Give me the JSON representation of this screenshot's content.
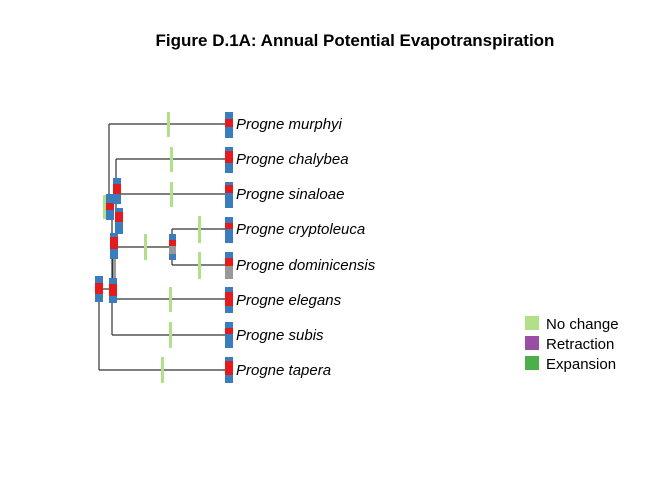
{
  "figure": {
    "title": "Figure D.1A: Annual Potential Evapotranspiration"
  },
  "tree": {
    "tips": [
      "Progne murphyi",
      "Progne chalybea",
      "Progne sinaloae",
      "Progne cryptoleuca",
      "Progne dominicensis",
      "Progne elegans",
      "Progne subis",
      "Progne tapera"
    ]
  },
  "legend": {
    "items": [
      {
        "label": "No change",
        "color": "#b2df8a"
      },
      {
        "label": "Retraction",
        "color": "#984ea3"
      },
      {
        "label": "Expansion",
        "color": "#4daf4a"
      }
    ]
  },
  "colors": {
    "bar_blue": "#3a7dbf",
    "bar_red": "#e41a1c",
    "bar_grey": "#999999",
    "no_change": "#b2df8a",
    "expansion": "#4daf4a"
  }
}
